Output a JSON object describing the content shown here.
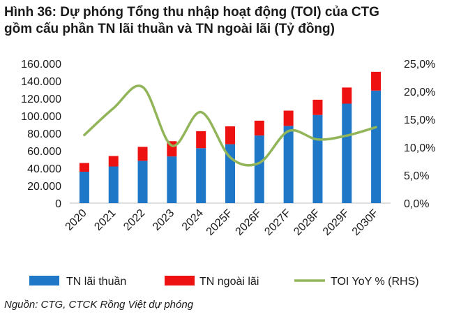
{
  "title_line1": "Hình 36: Dự phóng Tổng thu nhập hoạt động (TOI) của CTG",
  "title_line2": "gồm cấu phần TN lãi thuần và TN ngoài lãi (Tỷ đồng)",
  "source": "Nguồn: CTG, CTCK Rồng Việt dự phóng",
  "colors": {
    "net_interest": "#1f77c8",
    "non_interest": "#ee1111",
    "yoy": "#92b55a"
  },
  "chart_data": {
    "type": "bar",
    "stacked": true,
    "categories": [
      "2020",
      "2021",
      "2022",
      "2023",
      "2024",
      "2025F",
      "2026F",
      "2027F",
      "2028F",
      "2029F",
      "2030F"
    ],
    "series": [
      {
        "name": "TN lãi thuần",
        "axis": "left",
        "values": [
          36000,
          42000,
          48500,
          53500,
          63000,
          67500,
          77500,
          88500,
          101000,
          114000,
          129000
        ]
      },
      {
        "name": "TN ngoài lãi",
        "axis": "left",
        "values": [
          10000,
          12000,
          16000,
          17500,
          19500,
          20500,
          17000,
          17500,
          17500,
          18500,
          21500
        ]
      },
      {
        "name": "TOI YoY % (RHS)",
        "type": "line",
        "axis": "right",
        "values": [
          12.2,
          17.0,
          20.8,
          10.3,
          16.3,
          8.2,
          7.2,
          12.9,
          11.4,
          12.1,
          13.6
        ]
      }
    ],
    "yticks_left": [
      "160.000",
      "140.000",
      "120.000",
      "100.000",
      "80.000",
      "60.000",
      "40.000",
      "20.000",
      "0"
    ],
    "yticks_right": [
      "25,0%",
      "20,0%",
      "15,0%",
      "10,0%",
      "5,0%",
      "0,0%"
    ],
    "ylim_left": [
      0,
      160000
    ],
    "ylim_right": [
      0,
      25
    ],
    "grid": false,
    "legend_position": "bottom"
  }
}
